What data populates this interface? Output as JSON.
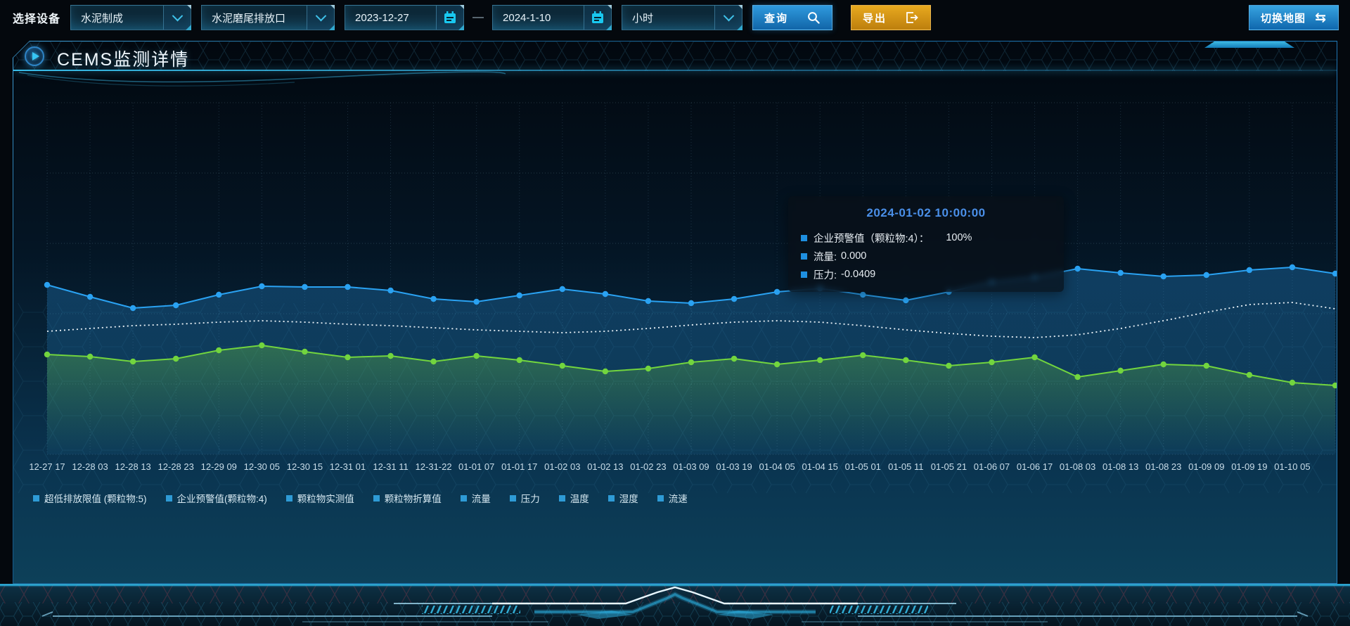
{
  "toolbar": {
    "device_label": "选择设备",
    "device_value": "水泥制成",
    "outlet_value": "水泥磨尾排放口",
    "date_start": "2023-12-27",
    "date_separator": "—",
    "date_end": "2024-1-10",
    "granularity_value": "小时",
    "query_label": "查询",
    "export_label": "导出",
    "switch_map_label": "切换地图"
  },
  "panel": {
    "title": "CEMS监测详情"
  },
  "tooltip": {
    "title": "2024-01-02 10:00:00",
    "items": [
      {
        "label": "企业预警值（颗粒物:4）：",
        "value": "100%"
      },
      {
        "label": "流量:",
        "value": "0.000"
      },
      {
        "label": "压力:",
        "value": "-0.0409"
      }
    ]
  },
  "colors": {
    "accent_cyan": "#2fb9e8",
    "tooltip_title": "#4a8fe8",
    "tooltip_marker": "#1e8fe0",
    "legend_marker": "#2e9bd6",
    "query_button": "#1f86cc",
    "export_button": "#d9961b",
    "switch_map_button": "#2a93d8"
  },
  "chart_data": {
    "type": "line",
    "title": "",
    "grid": "dotted",
    "y_axis_note": "no y-axis labels shown; values estimated as percent of plot height",
    "ylim": [
      0,
      100
    ],
    "legend_position": "bottom-left",
    "legend": [
      "超低排放限值 (颗粒物:5)",
      "企业预警值(颗粒物:4)",
      "颗粒物实测值",
      "颗粒物折算值",
      "流量",
      "压力",
      "温度",
      "湿度",
      "流速"
    ],
    "x_labels": [
      "12-27 17",
      "12-28 03",
      "12-28 13",
      "12-28 23",
      "12-29 09",
      "12-30 05",
      "12-30 15",
      "12-31 01",
      "12-31 11",
      "12-31-22",
      "01-01 07",
      "01-01 17",
      "01-02 03",
      "01-02 13",
      "01-02 23",
      "01-03 09",
      "01-03 19",
      "01-04 05",
      "01-04 15",
      "01-05 01",
      "01-05 11",
      "01-05 21",
      "01-06 07",
      "01-06 17",
      "01-08 03",
      "01-08 13",
      "01-08 23",
      "01-09 09",
      "01-09 19",
      "01-10 05"
    ],
    "series": [
      {
        "name": "企业预警值(颗粒物:4)",
        "color": "#2aa2f2",
        "style": "solid",
        "markers": true,
        "area": true,
        "values": [
          48.2,
          44.8,
          41.6,
          42.4,
          45.4,
          47.8,
          47.6,
          47.6,
          46.6,
          44.2,
          43.4,
          45.2,
          47.0,
          45.6,
          43.6,
          43.0,
          44.2,
          46.2,
          47.2,
          45.4,
          43.8,
          46.2,
          49.0,
          50.4,
          52.8,
          51.6,
          50.6,
          51.0,
          52.4,
          53.2,
          51.4
        ]
      },
      {
        "name": "流量",
        "color": "#eef5fa",
        "style": "dotted",
        "markers": false,
        "area": false,
        "values": [
          35.0,
          35.8,
          36.6,
          37.0,
          37.6,
          38.0,
          37.6,
          37.0,
          36.6,
          36.0,
          35.4,
          35.0,
          34.6,
          35.0,
          35.8,
          36.8,
          37.6,
          38.0,
          37.6,
          36.6,
          35.4,
          34.4,
          33.6,
          33.2,
          34.0,
          35.8,
          38.0,
          40.4,
          42.6,
          43.2,
          41.4
        ]
      },
      {
        "name": "压力",
        "color": "#72d53e",
        "style": "solid",
        "markers": true,
        "area": true,
        "values": [
          28.4,
          27.8,
          26.4,
          27.2,
          29.6,
          31.0,
          29.2,
          27.6,
          28.0,
          26.4,
          28.0,
          26.8,
          25.2,
          23.6,
          24.4,
          26.2,
          27.2,
          25.6,
          26.8,
          28.2,
          26.8,
          25.2,
          26.2,
          27.6,
          22.0,
          23.8,
          25.6,
          25.2,
          22.6,
          20.4,
          19.6
        ]
      }
    ]
  }
}
